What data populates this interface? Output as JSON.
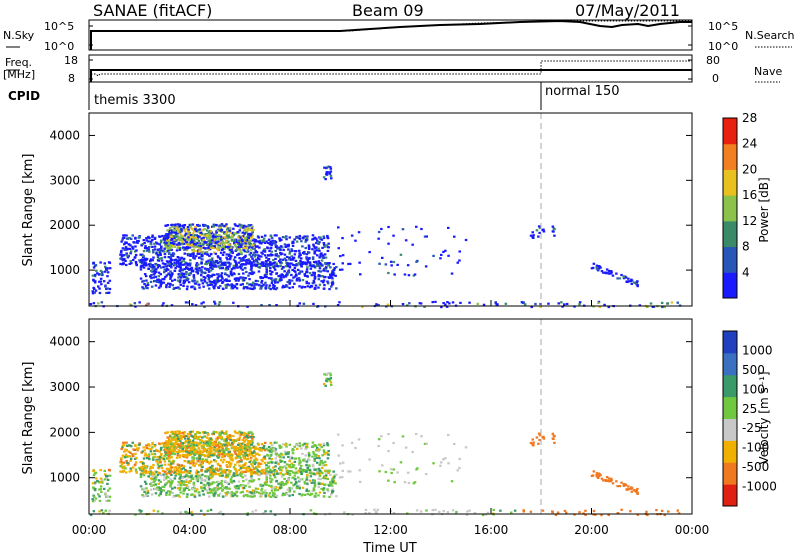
{
  "header": {
    "title_left": "SANAE (fitACF)",
    "title_center": "Beam 09",
    "title_right": "07/May/2011"
  },
  "panels": {
    "nsky": {
      "label": "N.Sky",
      "ticks": [
        "10^5",
        "10^0"
      ],
      "right_label": "N.Search",
      "right_ticks": [
        "10^5",
        "10^0"
      ]
    },
    "freq": {
      "label_line1": "Freq.",
      "label_line2": "[MHz]",
      "ticks": [
        "18",
        "8"
      ],
      "right_label": "Nave",
      "right_ticks": [
        "80",
        "0"
      ]
    },
    "cpid": {
      "label": "CPID",
      "segments": [
        "themis 3300",
        "normal 150"
      ]
    }
  },
  "chart_data": [
    {
      "type": "heatmap",
      "name": "power",
      "ylabel": "Slant Range [km]",
      "yticks": [
        "1000",
        "2000",
        "3000",
        "4000"
      ],
      "ylim": [
        200,
        4500
      ],
      "xlim": [
        0,
        24
      ],
      "colorbar_label": "Power [dB]",
      "colorbar_ticks": [
        "4",
        "8",
        "12",
        "16",
        "20",
        "24",
        "28"
      ],
      "colors": [
        "#1a1aff",
        "#2855b8",
        "#3a8a6a",
        "#8ac24a",
        "#e8c020",
        "#f08020",
        "#e82010"
      ],
      "vertical_marker_hour": 18
    },
    {
      "type": "heatmap",
      "name": "velocity",
      "ylabel": "Slant Range [km]",
      "yticks": [
        "1000",
        "2000",
        "3000",
        "4000"
      ],
      "ylim": [
        200,
        4500
      ],
      "xlim": [
        0,
        24
      ],
      "xticks": [
        "00:00",
        "04:00",
        "08:00",
        "12:00",
        "16:00",
        "20:00",
        "00:00"
      ],
      "xlabel": "Time UT",
      "colorbar_label": "Velocity [m s⁻¹]",
      "colorbar_ticks": [
        "1000",
        "500",
        "100",
        "25",
        "-25",
        "-100",
        "-500",
        "-1000"
      ],
      "colors": [
        "#2040c0",
        "#3a70c0",
        "#3a9a6a",
        "#70c840",
        "#c8c8c8",
        "#f0b000",
        "#f07820",
        "#e02010"
      ],
      "vertical_marker_hour": 18
    }
  ]
}
